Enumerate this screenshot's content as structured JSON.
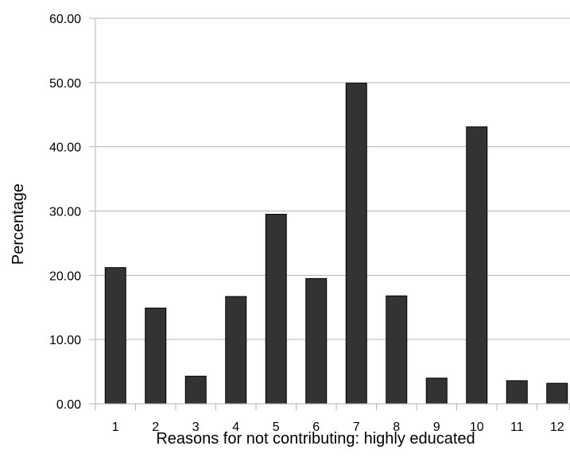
{
  "chart_data": {
    "type": "bar",
    "title": "",
    "xlabel": "Reasons for not contributing: highly educated",
    "ylabel": "Percentage",
    "categories": [
      "1",
      "2",
      "3",
      "4",
      "5",
      "6",
      "7",
      "8",
      "9",
      "10",
      "11",
      "12"
    ],
    "values": [
      21.2,
      14.9,
      4.3,
      16.7,
      29.5,
      19.5,
      49.9,
      16.8,
      4.0,
      43.1,
      3.6,
      3.2
    ],
    "ylim": [
      0,
      60
    ],
    "yticks": [
      "0.00",
      "10.00",
      "20.00",
      "30.00",
      "40.00",
      "50.00",
      "60.00"
    ],
    "grid": "horizontal",
    "legend": "none",
    "bar_color": "#333333"
  }
}
